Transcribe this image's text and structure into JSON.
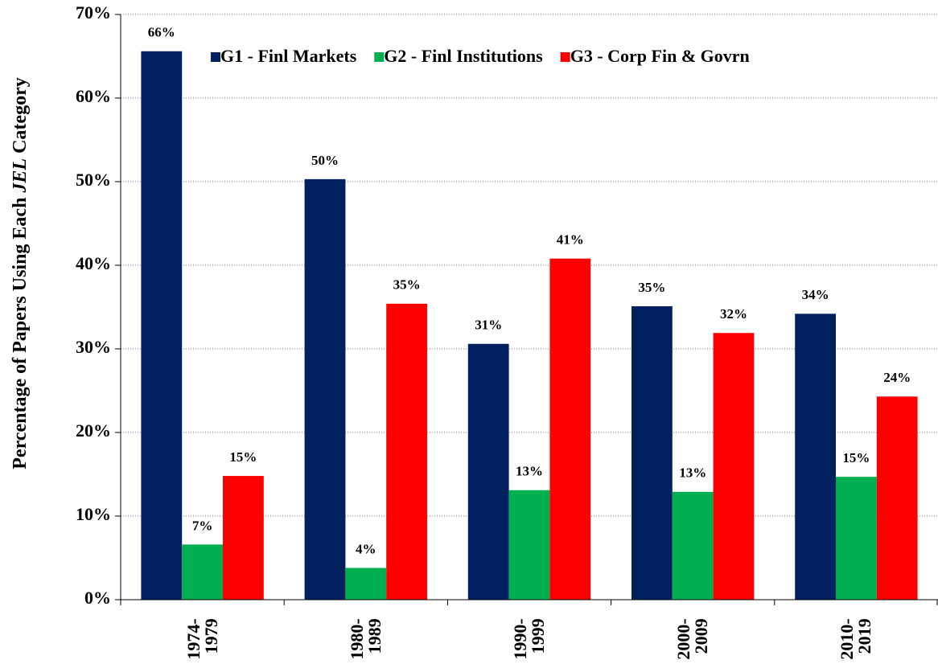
{
  "chart_data": {
    "type": "bar",
    "y_label": [
      "Percentage of Papers Using Each ",
      "JEL",
      " Category"
    ],
    "categories": [
      "1974-\n1979",
      "1980-\n1989",
      "1990-\n1999",
      "2000-\n2009",
      "2010-\n2019"
    ],
    "series": [
      {
        "name": "G1 - Finl Markets",
        "color": "#002060",
        "values": [
          65.6,
          50.3,
          30.6,
          35.1,
          34.2
        ],
        "value_labels": [
          "66%",
          "50%",
          "31%",
          "35%",
          "34%"
        ]
      },
      {
        "name": "G2 - Finl Institutions",
        "color": "#00b050",
        "values": [
          6.6,
          3.8,
          13.1,
          12.9,
          14.7
        ],
        "value_labels": [
          "7%",
          "4%",
          "13%",
          "13%",
          "15%"
        ]
      },
      {
        "name": "G3 - Corp Fin & Govrn",
        "color": "#ff0000",
        "values": [
          14.8,
          35.4,
          40.8,
          31.9,
          24.3
        ],
        "value_labels": [
          "15%",
          "35%",
          "41%",
          "32%",
          "24%"
        ]
      }
    ],
    "ylim": [
      0,
      70
    ],
    "yticks": [
      {
        "value": 0,
        "label": "0%"
      },
      {
        "value": 10,
        "label": "10%"
      },
      {
        "value": 20,
        "label": "20%"
      },
      {
        "value": 30,
        "label": "30%"
      },
      {
        "value": 40,
        "label": "40%"
      },
      {
        "value": 50,
        "label": "50%"
      },
      {
        "value": 60,
        "label": "60%"
      },
      {
        "value": 70,
        "label": "70%"
      }
    ],
    "grid": true
  }
}
